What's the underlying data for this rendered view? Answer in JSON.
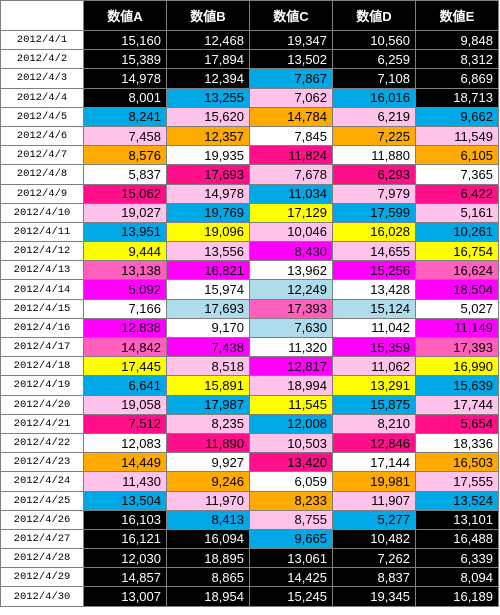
{
  "colors": {
    "black": "#000000",
    "blue": "#00a8e6",
    "pink": "#ffc2ea",
    "orange": "#ffaa00",
    "white": "#ffffff",
    "magenta": "#ff0f8a",
    "yellow": "#ffff00",
    "purple": "#ff00ff",
    "hotpink": "#ff5fbd",
    "lightblue": "#aedceb"
  },
  "table": {
    "headers": [
      "",
      "数値A",
      "数値B",
      "数値C",
      "数値D",
      "数値E"
    ],
    "rows": [
      {
        "date": "2012/4/1",
        "cells": [
          [
            "15,160",
            "black"
          ],
          [
            "12,468",
            "black"
          ],
          [
            "19,347",
            "black"
          ],
          [
            "10,560",
            "black"
          ],
          [
            "9,848",
            "black"
          ]
        ]
      },
      {
        "date": "2012/4/2",
        "cells": [
          [
            "15,389",
            "black"
          ],
          [
            "17,894",
            "black"
          ],
          [
            "13,502",
            "black"
          ],
          [
            "6,259",
            "black"
          ],
          [
            "8,312",
            "black"
          ]
        ]
      },
      {
        "date": "2012/4/3",
        "cells": [
          [
            "14,978",
            "black"
          ],
          [
            "12,394",
            "black"
          ],
          [
            "7,867",
            "blue"
          ],
          [
            "7,108",
            "black"
          ],
          [
            "6,869",
            "black"
          ]
        ]
      },
      {
        "date": "2012/4/4",
        "cells": [
          [
            "8,001",
            "black"
          ],
          [
            "13,255",
            "blue"
          ],
          [
            "7,062",
            "pink"
          ],
          [
            "16,016",
            "blue"
          ],
          [
            "18,713",
            "black"
          ]
        ]
      },
      {
        "date": "2012/4/5",
        "cells": [
          [
            "8,241",
            "blue"
          ],
          [
            "15,620",
            "pink"
          ],
          [
            "14,784",
            "orange"
          ],
          [
            "6,219",
            "pink"
          ],
          [
            "9,662",
            "blue"
          ]
        ]
      },
      {
        "date": "2012/4/6",
        "cells": [
          [
            "7,458",
            "pink"
          ],
          [
            "12,357",
            "orange"
          ],
          [
            "7,845",
            "white"
          ],
          [
            "7,225",
            "orange"
          ],
          [
            "11,549",
            "pink"
          ]
        ]
      },
      {
        "date": "2012/4/7",
        "cells": [
          [
            "8,576",
            "orange"
          ],
          [
            "19,935",
            "white"
          ],
          [
            "11,824",
            "magenta"
          ],
          [
            "11,880",
            "white"
          ],
          [
            "6,105",
            "orange"
          ]
        ]
      },
      {
        "date": "2012/4/8",
        "cells": [
          [
            "5,837",
            "white"
          ],
          [
            "17,693",
            "magenta"
          ],
          [
            "7,678",
            "pink"
          ],
          [
            "6,293",
            "magenta"
          ],
          [
            "7,365",
            "white"
          ]
        ]
      },
      {
        "date": "2012/4/9",
        "cells": [
          [
            "15,062",
            "magenta"
          ],
          [
            "14,978",
            "pink"
          ],
          [
            "11,034",
            "blue"
          ],
          [
            "7,979",
            "pink"
          ],
          [
            "6,422",
            "magenta"
          ]
        ]
      },
      {
        "date": "2012/4/10",
        "cells": [
          [
            "19,027",
            "pink"
          ],
          [
            "19,769",
            "blue"
          ],
          [
            "17,129",
            "yellow"
          ],
          [
            "17,599",
            "blue"
          ],
          [
            "5,161",
            "pink"
          ]
        ]
      },
      {
        "date": "2012/4/11",
        "cells": [
          [
            "13,951",
            "blue"
          ],
          [
            "19,096",
            "yellow"
          ],
          [
            "10,046",
            "pink"
          ],
          [
            "16,028",
            "yellow"
          ],
          [
            "10,261",
            "blue"
          ]
        ]
      },
      {
        "date": "2012/4/12",
        "cells": [
          [
            "9,444",
            "yellow"
          ],
          [
            "13,556",
            "pink"
          ],
          [
            "8,430",
            "purple"
          ],
          [
            "14,655",
            "pink"
          ],
          [
            "16,754",
            "yellow"
          ]
        ]
      },
      {
        "date": "2012/4/13",
        "cells": [
          [
            "13,138",
            "hotpink"
          ],
          [
            "16,821",
            "purple"
          ],
          [
            "13,962",
            "white"
          ],
          [
            "15,256",
            "purple"
          ],
          [
            "16,624",
            "hotpink"
          ]
        ]
      },
      {
        "date": "2012/4/14",
        "cells": [
          [
            "5,092",
            "purple"
          ],
          [
            "15,974",
            "white"
          ],
          [
            "12,249",
            "lightblue"
          ],
          [
            "13,428",
            "white"
          ],
          [
            "18,504",
            "purple"
          ]
        ]
      },
      {
        "date": "2012/4/15",
        "cells": [
          [
            "7,166",
            "white"
          ],
          [
            "17,693",
            "lightblue"
          ],
          [
            "17,393",
            "hotpink"
          ],
          [
            "15,124",
            "lightblue"
          ],
          [
            "5,027",
            "white"
          ]
        ]
      },
      {
        "date": "2012/4/16",
        "cells": [
          [
            "12,838",
            "purple"
          ],
          [
            "9,170",
            "white"
          ],
          [
            "7,630",
            "lightblue"
          ],
          [
            "11,042",
            "white"
          ],
          [
            "11,149",
            "purple"
          ]
        ]
      },
      {
        "date": "2012/4/17",
        "cells": [
          [
            "14,842",
            "hotpink"
          ],
          [
            "7,438",
            "purple"
          ],
          [
            "11,320",
            "white"
          ],
          [
            "15,359",
            "purple"
          ],
          [
            "17,393",
            "hotpink"
          ]
        ]
      },
      {
        "date": "2012/4/18",
        "cells": [
          [
            "17,445",
            "yellow"
          ],
          [
            "8,518",
            "pink"
          ],
          [
            "12,817",
            "purple"
          ],
          [
            "11,062",
            "pink"
          ],
          [
            "16,990",
            "yellow"
          ]
        ]
      },
      {
        "date": "2012/4/19",
        "cells": [
          [
            "6,641",
            "blue"
          ],
          [
            "15,891",
            "yellow"
          ],
          [
            "18,994",
            "pink"
          ],
          [
            "13,291",
            "yellow"
          ],
          [
            "15,639",
            "blue"
          ]
        ]
      },
      {
        "date": "2012/4/20",
        "cells": [
          [
            "19,058",
            "pink"
          ],
          [
            "17,987",
            "blue"
          ],
          [
            "11,545",
            "yellow"
          ],
          [
            "15,875",
            "blue"
          ],
          [
            "17,744",
            "pink"
          ]
        ]
      },
      {
        "date": "2012/4/21",
        "cells": [
          [
            "7,512",
            "magenta"
          ],
          [
            "8,235",
            "pink"
          ],
          [
            "12,008",
            "blue"
          ],
          [
            "8,210",
            "pink"
          ],
          [
            "5,654",
            "magenta"
          ]
        ]
      },
      {
        "date": "2012/4/22",
        "cells": [
          [
            "12,083",
            "white"
          ],
          [
            "11,890",
            "magenta"
          ],
          [
            "10,503",
            "pink"
          ],
          [
            "12,846",
            "magenta"
          ],
          [
            "18,336",
            "white"
          ]
        ]
      },
      {
        "date": "2012/4/23",
        "cells": [
          [
            "14,449",
            "orange"
          ],
          [
            "9,927",
            "white"
          ],
          [
            "13,420",
            "magenta"
          ],
          [
            "17,144",
            "white"
          ],
          [
            "16,503",
            "orange"
          ]
        ]
      },
      {
        "date": "2012/4/24",
        "cells": [
          [
            "11,430",
            "pink"
          ],
          [
            "9,246",
            "orange"
          ],
          [
            "6,059",
            "white"
          ],
          [
            "19,981",
            "orange"
          ],
          [
            "17,555",
            "pink"
          ]
        ]
      },
      {
        "date": "2012/4/25",
        "cells": [
          [
            "13,504",
            "blue"
          ],
          [
            "11,970",
            "pink"
          ],
          [
            "8,233",
            "orange"
          ],
          [
            "11,907",
            "pink"
          ],
          [
            "13,524",
            "blue"
          ]
        ]
      },
      {
        "date": "2012/4/26",
        "cells": [
          [
            "16,103",
            "black"
          ],
          [
            "8,413",
            "blue"
          ],
          [
            "8,755",
            "pink"
          ],
          [
            "5,277",
            "blue"
          ],
          [
            "13,101",
            "black"
          ]
        ]
      },
      {
        "date": "2012/4/27",
        "cells": [
          [
            "16,121",
            "black"
          ],
          [
            "16,094",
            "black"
          ],
          [
            "9,665",
            "blue"
          ],
          [
            "10,482",
            "black"
          ],
          [
            "16,488",
            "black"
          ]
        ]
      },
      {
        "date": "2012/4/28",
        "cells": [
          [
            "12,030",
            "black"
          ],
          [
            "18,895",
            "black"
          ],
          [
            "13,061",
            "black"
          ],
          [
            "7,262",
            "black"
          ],
          [
            "6,339",
            "black"
          ]
        ]
      },
      {
        "date": "2012/4/29",
        "cells": [
          [
            "14,857",
            "black"
          ],
          [
            "8,865",
            "black"
          ],
          [
            "14,425",
            "black"
          ],
          [
            "8,837",
            "black"
          ],
          [
            "8,094",
            "black"
          ]
        ]
      },
      {
        "date": "2012/4/30",
        "cells": [
          [
            "13,007",
            "black"
          ],
          [
            "18,954",
            "black"
          ],
          [
            "15,245",
            "black"
          ],
          [
            "19,345",
            "black"
          ],
          [
            "16,189",
            "black"
          ]
        ]
      }
    ]
  }
}
